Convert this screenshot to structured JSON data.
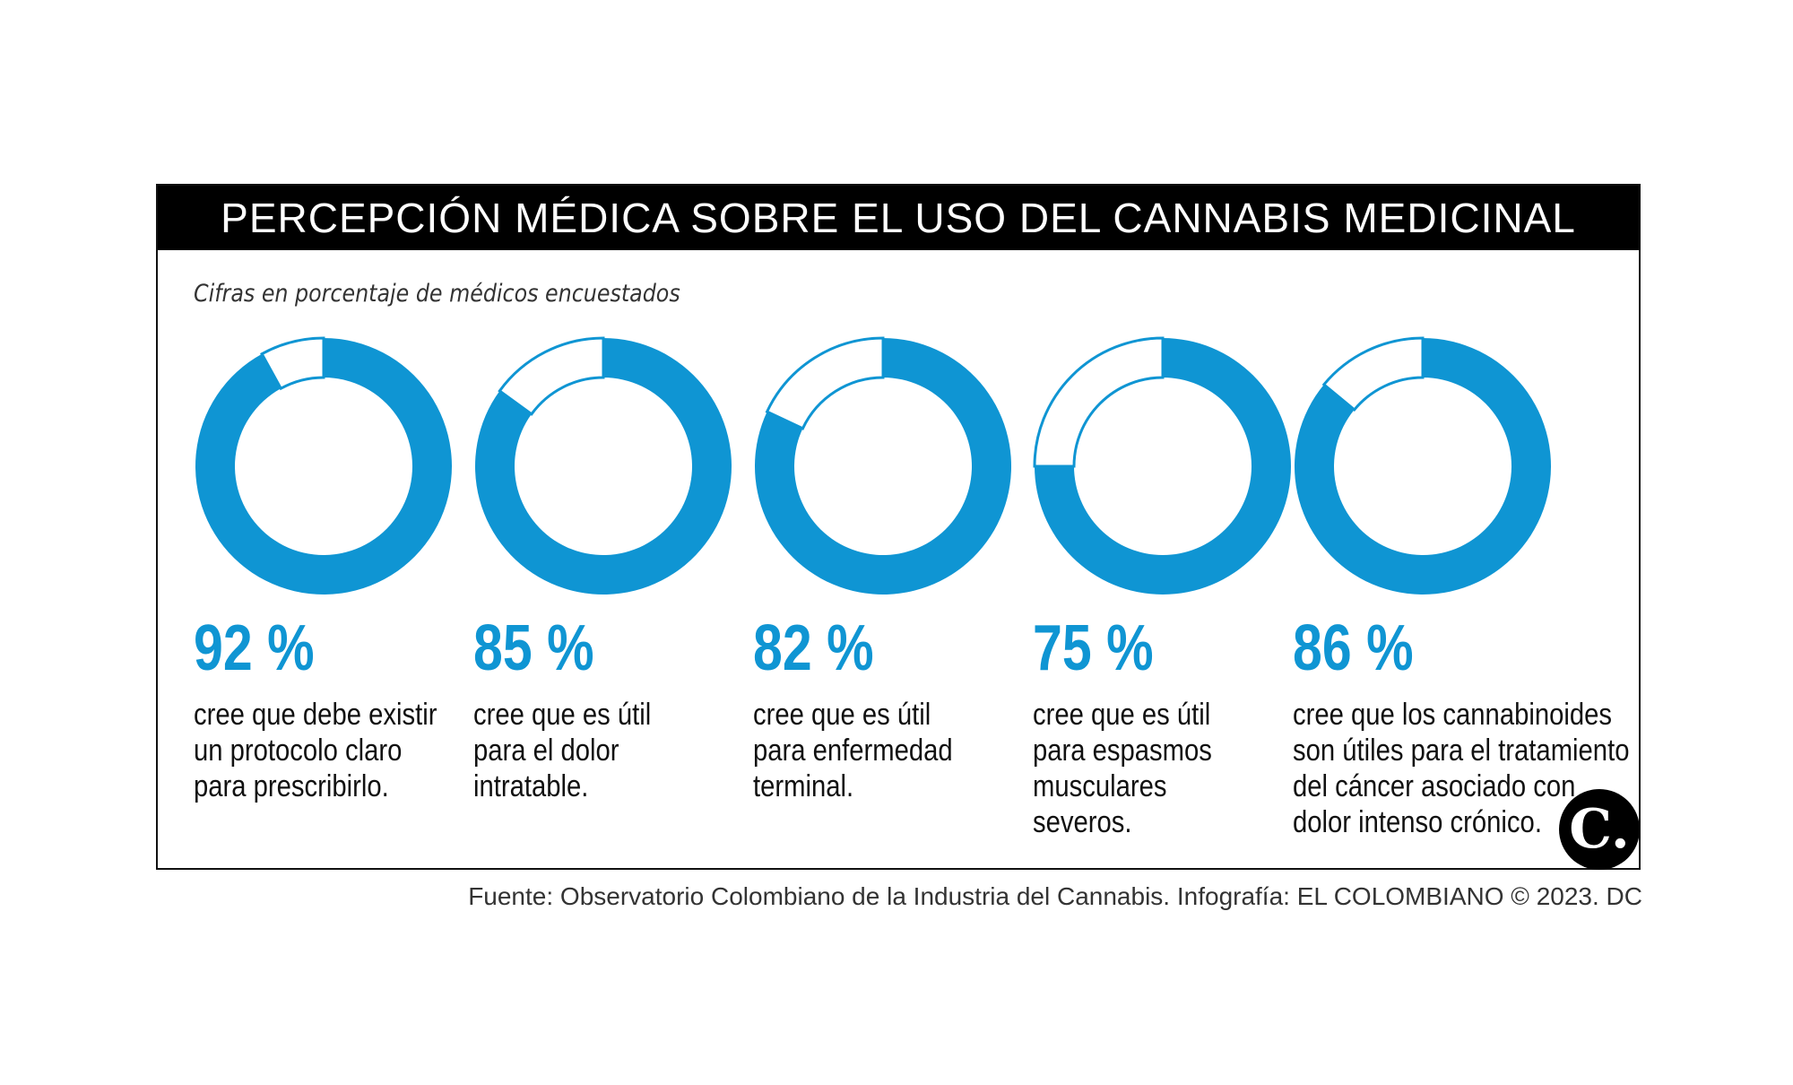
{
  "title": "PERCEPCIÓN MÉDICA SOBRE EL USO DEL CANNABIS MEDICINAL",
  "subtitle": "Cifras en porcentaje de médicos encuestados",
  "colors": {
    "accent": "#0f95d3",
    "title_bg": "#000000",
    "text": "#111111"
  },
  "chart_data": {
    "type": "donut",
    "title": "PERCEPCIÓN MÉDICA SOBRE EL USO DEL CANNABIS MEDICINAL",
    "subtitle": "Cifras en porcentaje de médicos encuestados",
    "items": [
      {
        "value": 92,
        "value_label": "92 %",
        "description": [
          "cree que debe existir",
          "un protocolo claro",
          "para prescribirlo."
        ]
      },
      {
        "value": 85,
        "value_label": "85 %",
        "description": [
          "cree que es útil",
          "para el dolor",
          "intratable."
        ]
      },
      {
        "value": 82,
        "value_label": "82 %",
        "description": [
          "cree que es útil",
          "para enfermedad",
          "terminal."
        ]
      },
      {
        "value": 75,
        "value_label": "75 %",
        "description": [
          "cree que es útil",
          "para espasmos",
          "musculares",
          "severos."
        ]
      },
      {
        "value": 86,
        "value_label": "86 %",
        "description": [
          "cree que los cannabinoides",
          "son útiles para el tratamiento",
          "del cáncer asociado con",
          "dolor intenso crónico."
        ]
      }
    ]
  },
  "logo_text": "C.",
  "footer": "Fuente: Observatorio Colombiano de la Industria del Cannabis. Infografía: EL COLOMBIANO © 2023. DC"
}
